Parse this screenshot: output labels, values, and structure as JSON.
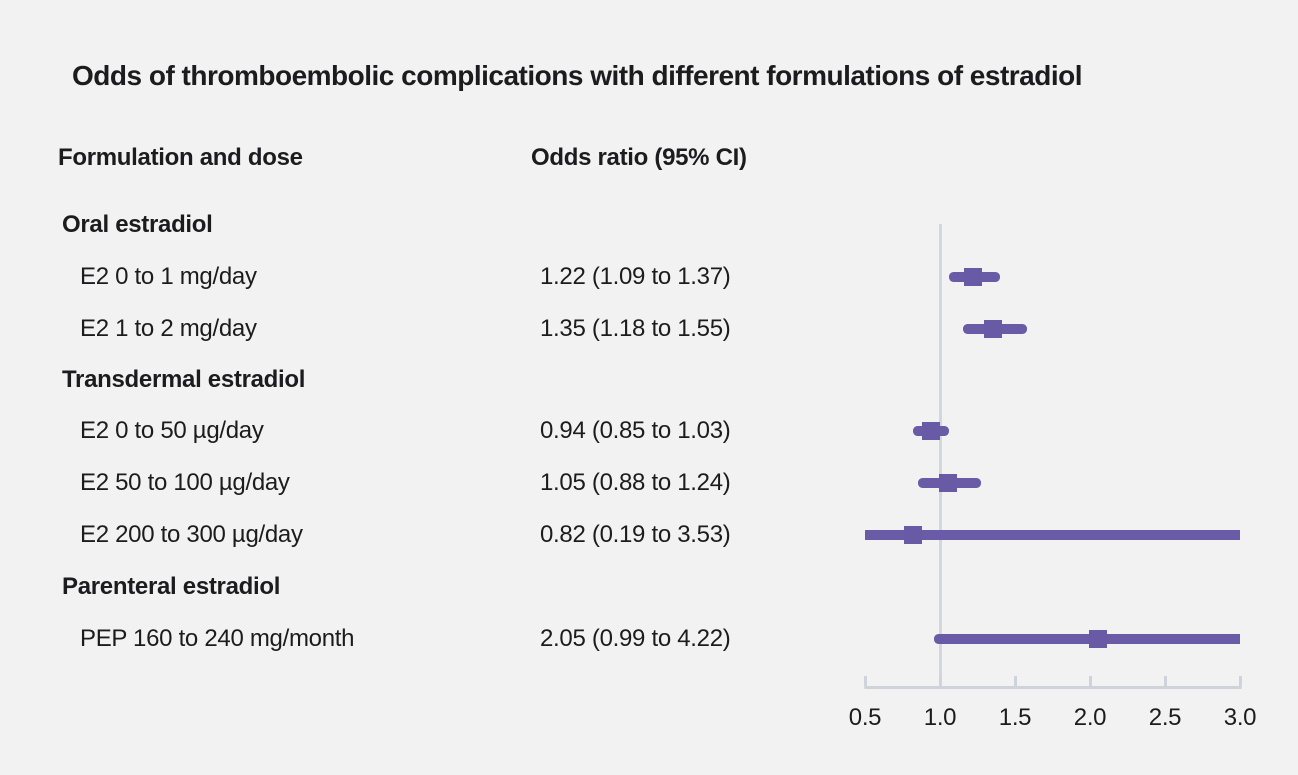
{
  "page": {
    "background": "#f2f2f2",
    "text_color": "#1c1c1e"
  },
  "title": "Odds of thromboembolic complications with different formulations of estradiol",
  "columns": {
    "formulation": "Formulation and dose",
    "odds": "Odds ratio (95% CI)"
  },
  "chart_data": {
    "type": "scatter",
    "variant": "forest-plot",
    "title": "Odds of thromboembolic complications with different formulations of estradiol",
    "xlabel": "",
    "ylabel": "",
    "xlim": [
      0.5,
      3.0
    ],
    "x_ticks": [
      "0.5",
      "1.0",
      "1.5",
      "2.0",
      "2.5",
      "3.0"
    ],
    "x_tick_values": [
      0.5,
      1.0,
      1.5,
      2.0,
      2.5,
      3.0
    ],
    "reference_line_x": 1.0,
    "grid": false,
    "legend": false,
    "rows": [
      {
        "type": "group",
        "label": "Oral estradiol"
      },
      {
        "type": "item",
        "label": "E2 0 to 1 mg/day",
        "or_text": "1.22 (1.09 to 1.37)",
        "est": 1.22,
        "lo": 1.09,
        "hi": 1.37
      },
      {
        "type": "item",
        "label": "E2 1 to 2 mg/day",
        "or_text": "1.35 (1.18 to 1.55)",
        "est": 1.35,
        "lo": 1.18,
        "hi": 1.55
      },
      {
        "type": "group",
        "label": "Transdermal estradiol"
      },
      {
        "type": "item",
        "label": "E2 0 to 50 µg/day",
        "or_text": "0.94 (0.85 to 1.03)",
        "est": 0.94,
        "lo": 0.85,
        "hi": 1.03
      },
      {
        "type": "item",
        "label": "E2 50 to 100 µg/day",
        "or_text": "1.05 (0.88 to 1.24)",
        "est": 1.05,
        "lo": 0.88,
        "hi": 1.24
      },
      {
        "type": "item",
        "label": "E2 200 to 300 µg/day",
        "or_text": "0.82 (0.19 to 3.53)",
        "est": 0.82,
        "lo": 0.19,
        "hi": 3.53
      },
      {
        "type": "group",
        "label": "Parenteral estradiol"
      },
      {
        "type": "item",
        "label": "PEP 160 to 240 mg/month",
        "or_text": "2.05 (0.99 to 4.22)",
        "est": 2.05,
        "lo": 0.99,
        "hi": 4.22
      }
    ],
    "colors": {
      "ci_line": "#6a5ba6",
      "marker": "#685aa5",
      "axis": "#ced3dc",
      "reference_line": "#d2d6de"
    }
  }
}
